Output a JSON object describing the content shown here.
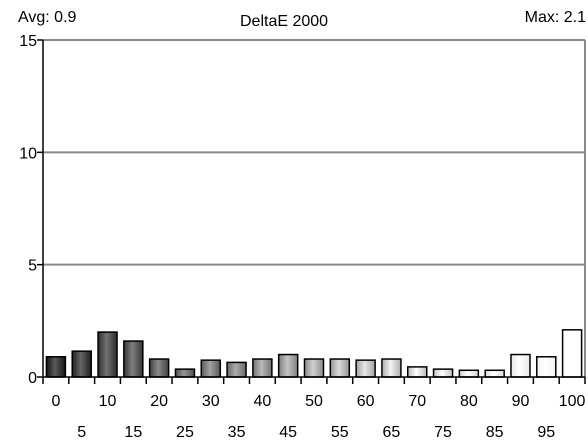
{
  "header": {
    "avg_label": "Avg: 0.9",
    "title": "DeltaE 2000",
    "max_label": "Max: 2.1"
  },
  "chart_data": {
    "type": "bar",
    "title": "DeltaE 2000",
    "xlabel": "",
    "ylabel": "",
    "ylim": [
      0,
      15
    ],
    "yticks": [
      0,
      5,
      10,
      15
    ],
    "grid": true,
    "categories": [
      0,
      5,
      10,
      15,
      20,
      25,
      30,
      35,
      40,
      45,
      50,
      55,
      60,
      65,
      70,
      75,
      80,
      85,
      90,
      95,
      100
    ],
    "values": [
      0.9,
      1.15,
      2.0,
      1.6,
      0.8,
      0.35,
      0.75,
      0.65,
      0.8,
      1.0,
      0.8,
      0.8,
      0.75,
      0.8,
      0.45,
      0.35,
      0.3,
      0.3,
      1.0,
      0.9,
      2.1
    ],
    "xtick_labels_row1": [
      "0",
      "10",
      "20",
      "30",
      "40",
      "50",
      "60",
      "70",
      "80",
      "90",
      "100"
    ],
    "xtick_labels_row2": [
      "5",
      "15",
      "25",
      "35",
      "45",
      "55",
      "65",
      "75",
      "85",
      "95"
    ],
    "colors": {
      "grid": "#8a8a8a",
      "axis": "#000000",
      "bar_stroke": "#000000"
    }
  }
}
